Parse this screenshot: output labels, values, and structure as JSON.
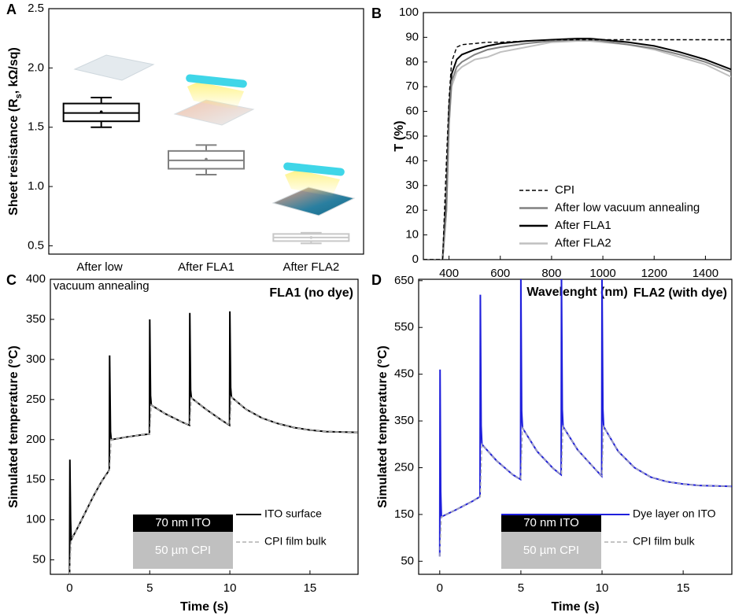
{
  "chart_data": [
    {
      "panel": "A",
      "type": "box",
      "y_label": [
        "Sheet resistance (R",
        "s",
        ", kΩ/sq)"
      ],
      "categories": [
        "After low vacuum annealing",
        "After FLA1",
        "After FLA2"
      ],
      "colors": [
        "#000000",
        "#808080",
        "#c8c8c8"
      ],
      "boxes": [
        {
          "min": 1.5,
          "q1": 1.55,
          "median": 1.62,
          "q3": 1.7,
          "max": 1.75,
          "mean": 1.63
        },
        {
          "min": 1.1,
          "q1": 1.15,
          "median": 1.22,
          "q3": 1.3,
          "max": 1.35,
          "mean": 1.23
        },
        {
          "min": 0.52,
          "q1": 0.54,
          "median": 0.57,
          "q3": 0.6,
          "max": 0.61,
          "mean": 0.57
        }
      ],
      "ylim": [
        0.43,
        2.5
      ],
      "yticks": [
        0.5,
        {
          "value": 1.0,
          "label": "1.0"
        },
        1.5,
        {
          "value": 2.0,
          "label": "2.0"
        },
        2.5
      ]
    },
    {
      "panel": "B",
      "type": "line",
      "x_label": "Wavelenght (nm)",
      "y_label": "T (%)",
      "x": [
        300,
        375,
        390,
        400,
        410,
        430,
        450,
        500,
        550,
        600,
        700,
        800,
        900,
        950,
        1000,
        1100,
        1200,
        1300,
        1400,
        1500
      ],
      "series": [
        {
          "name": "CPI",
          "color": "#000000",
          "dash": true,
          "values": [
            0,
            0,
            40,
            65,
            80,
            86,
            87,
            87.5,
            88,
            88,
            88.5,
            89,
            89,
            89,
            89,
            89,
            89,
            89,
            89,
            89
          ]
        },
        {
          "name": "After low vacuum annealing",
          "color": "#808080",
          "values": [
            0,
            0,
            20,
            55,
            72,
            78,
            80,
            83,
            85,
            86,
            87.5,
            88.5,
            89,
            89,
            88.5,
            87,
            85.5,
            83,
            80,
            76
          ]
        },
        {
          "name": "After FLA1",
          "color": "#000000",
          "values": [
            0,
            0,
            25,
            60,
            75,
            81,
            83,
            85,
            86.5,
            87.5,
            88.5,
            89,
            89.5,
            89.5,
            89,
            88,
            86.5,
            84,
            81,
            77
          ]
        },
        {
          "name": "After FLA2",
          "color": "#c0c0c0",
          "values": [
            0,
            0,
            20,
            55,
            70,
            76,
            78,
            81,
            82,
            84,
            86,
            88,
            88.5,
            88.5,
            88,
            87,
            85,
            82,
            79,
            74
          ]
        }
      ],
      "xlim": [
        300,
        1500
      ],
      "xticks": [
        400,
        600,
        800,
        1000,
        1200,
        1400
      ],
      "ylim": [
        0,
        100
      ],
      "yticks": [
        0,
        10,
        20,
        30,
        40,
        50,
        60,
        70,
        80,
        90,
        100
      ],
      "legend": "lower right"
    },
    {
      "panel": "C",
      "type": "line",
      "title": "FLA1 (no dye)",
      "x_label": "Time (s)",
      "y_label": "Simulated temperature (°C)",
      "inset_layers": [
        "70 nm ITO",
        "50 µm CPI"
      ],
      "series": [
        {
          "name": "ITO surface",
          "color": "#000000",
          "x": [
            0,
            0.02,
            0.06,
            0.1,
            0.5,
            1,
            1.5,
            2,
            2.48,
            2.5,
            2.55,
            2.6,
            3.5,
            4.5,
            4.98,
            5,
            5.05,
            5.1,
            6,
            7,
            7.48,
            7.5,
            7.55,
            7.6,
            8.5,
            9.5,
            9.98,
            10,
            10.05,
            10.1,
            11,
            12,
            13,
            14,
            15,
            16,
            18
          ],
          "values": [
            30,
            175,
            100,
            75,
            90,
            110,
            130,
            148,
            162,
            305,
            210,
            200,
            203,
            206,
            207,
            350,
            255,
            243,
            232,
            222,
            218,
            358,
            262,
            252,
            238,
            224,
            218,
            360,
            265,
            253,
            238,
            227,
            220,
            215,
            212,
            210,
            209
          ]
        },
        {
          "name": "CPI film bulk",
          "color": "#b0b0b0",
          "dash": true,
          "x": [
            0,
            0.1,
            0.5,
            1,
            1.5,
            2,
            2.5,
            2.6,
            3.5,
            4.5,
            5,
            5.1,
            6,
            7,
            7.5,
            7.6,
            8.5,
            9.5,
            10,
            10.1,
            11,
            12,
            13,
            14,
            15,
            16,
            18
          ],
          "values": [
            30,
            75,
            90,
            110,
            130,
            148,
            162,
            200,
            203,
            206,
            207,
            243,
            232,
            222,
            218,
            252,
            238,
            224,
            218,
            253,
            238,
            227,
            220,
            215,
            212,
            210,
            209
          ]
        }
      ],
      "xlim": [
        -1.2,
        18
      ],
      "xticks": [
        0,
        5,
        10,
        15
      ],
      "ylim": [
        32,
        400
      ],
      "yticks": [
        50,
        100,
        150,
        200,
        250,
        300,
        350,
        400
      ]
    },
    {
      "panel": "D",
      "type": "line",
      "title": "FLA2 (with dye)",
      "x_label": "Time (s)",
      "y_label": "Simulated temperature (°C)",
      "inset_layers": [
        "70 nm ITO",
        "50 µm CPI"
      ],
      "series": [
        {
          "name": "Dye layer on ITO",
          "color": "#1f1fdc",
          "x": [
            0,
            0.02,
            0.06,
            0.1,
            1,
            2,
            2.48,
            2.5,
            2.55,
            2.6,
            3.5,
            4.5,
            4.98,
            5,
            5.05,
            5.1,
            6,
            7,
            7.48,
            7.5,
            7.55,
            7.6,
            8.5,
            9.5,
            9.98,
            10,
            10.05,
            10.1,
            11,
            12,
            13,
            14,
            15,
            16,
            18
          ],
          "values": [
            60,
            460,
            200,
            145,
            160,
            178,
            188,
            620,
            340,
            300,
            265,
            235,
            225,
            655,
            370,
            335,
            285,
            248,
            235,
            660,
            375,
            338,
            288,
            250,
            232,
            660,
            375,
            338,
            285,
            250,
            230,
            220,
            215,
            212,
            210
          ]
        },
        {
          "name": "CPI film bulk",
          "color": "#b0b0b0",
          "dash": true,
          "x": [
            0,
            0.1,
            1,
            2,
            2.5,
            2.6,
            3.5,
            4.5,
            5,
            5.1,
            6,
            7,
            7.5,
            7.6,
            8.5,
            9.5,
            10,
            10.1,
            11,
            12,
            13,
            14,
            15,
            16,
            18
          ],
          "values": [
            60,
            145,
            160,
            178,
            188,
            300,
            265,
            235,
            225,
            335,
            285,
            248,
            235,
            338,
            288,
            250,
            232,
            338,
            285,
            250,
            230,
            220,
            215,
            212,
            210
          ]
        }
      ],
      "xlim": [
        -1.3,
        18
      ],
      "xticks": [
        0,
        5,
        10,
        15
      ],
      "ylim": [
        22,
        653
      ],
      "yticks": [
        50,
        150,
        250,
        350,
        450,
        550,
        650
      ]
    }
  ]
}
